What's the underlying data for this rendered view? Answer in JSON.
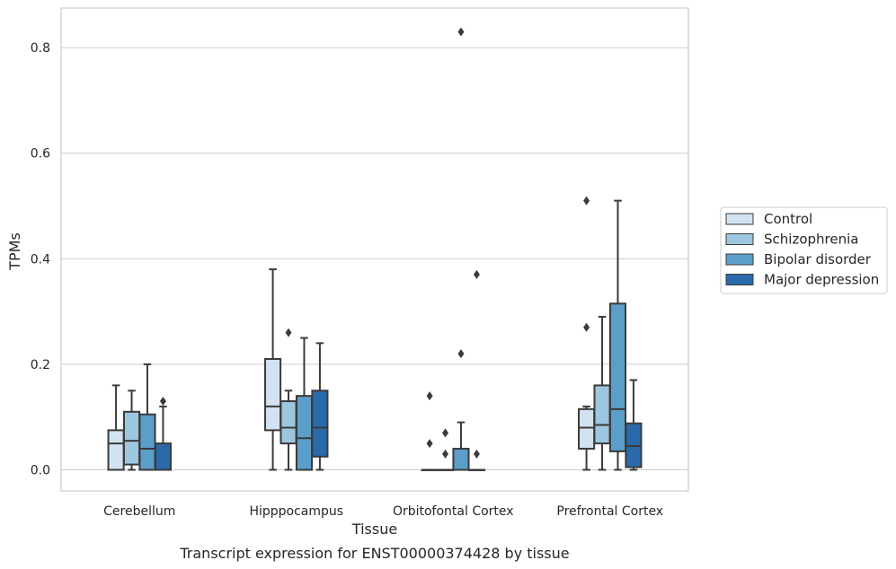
{
  "caption": "Transcript expression for ENST00000374428 by tissue",
  "chart_data": {
    "type": "box",
    "xlabel": "Tissue",
    "ylabel": "TPMs",
    "ylim": [
      -0.04,
      0.875
    ],
    "yticks": [
      "0.0",
      "0.2",
      "0.4",
      "0.6",
      "0.8"
    ],
    "ytick_values": [
      0.0,
      0.2,
      0.4,
      0.6,
      0.8
    ],
    "grid": true,
    "legend_position": "right",
    "categories": [
      "Cerebellum",
      "Hipppocampus",
      "Orbitofontal Cortex",
      "Prefrontal Cortex"
    ],
    "series": [
      {
        "name": "Control",
        "color": "#d2e2f0",
        "boxes": [
          {
            "min": 0.0,
            "q1": 0.0,
            "median": 0.05,
            "q3": 0.075,
            "max": 0.16,
            "outliers": []
          },
          {
            "min": 0.0,
            "q1": 0.075,
            "median": 0.12,
            "q3": 0.21,
            "max": 0.38,
            "outliers": []
          },
          {
            "min": 0.0,
            "q1": 0.0,
            "median": 0.0,
            "q3": 0.0,
            "max": 0.0,
            "outliers": [
              0.14,
              0.05
            ]
          },
          {
            "min": 0.0,
            "q1": 0.04,
            "median": 0.08,
            "q3": 0.115,
            "max": 0.12,
            "outliers": [
              0.51,
              0.27
            ]
          }
        ]
      },
      {
        "name": "Schizophrenia",
        "color": "#9dc7e0",
        "boxes": [
          {
            "min": 0.0,
            "q1": 0.01,
            "median": 0.055,
            "q3": 0.11,
            "max": 0.15,
            "outliers": []
          },
          {
            "min": 0.0,
            "q1": 0.05,
            "median": 0.08,
            "q3": 0.13,
            "max": 0.15,
            "outliers": [
              0.26
            ]
          },
          {
            "min": 0.0,
            "q1": 0.0,
            "median": 0.0,
            "q3": 0.0,
            "max": 0.0,
            "outliers": [
              0.07,
              0.03
            ]
          },
          {
            "min": 0.0,
            "q1": 0.05,
            "median": 0.085,
            "q3": 0.16,
            "max": 0.29,
            "outliers": []
          }
        ]
      },
      {
        "name": "Bipolar disorder",
        "color": "#5a9ec9",
        "boxes": [
          {
            "min": 0.0,
            "q1": 0.0,
            "median": 0.04,
            "q3": 0.105,
            "max": 0.2,
            "outliers": []
          },
          {
            "min": 0.0,
            "q1": 0.0,
            "median": 0.06,
            "q3": 0.14,
            "max": 0.25,
            "outliers": []
          },
          {
            "min": 0.0,
            "q1": 0.0,
            "median": 0.0,
            "q3": 0.04,
            "max": 0.09,
            "outliers": [
              0.83,
              0.22
            ]
          },
          {
            "min": 0.0,
            "q1": 0.035,
            "median": 0.115,
            "q3": 0.315,
            "max": 0.51,
            "outliers": []
          }
        ]
      },
      {
        "name": "Major depression",
        "color": "#2a6aab",
        "boxes": [
          {
            "min": 0.0,
            "q1": 0.0,
            "median": 0.0,
            "q3": 0.05,
            "max": 0.12,
            "outliers": [
              0.13
            ]
          },
          {
            "min": 0.0,
            "q1": 0.025,
            "median": 0.08,
            "q3": 0.15,
            "max": 0.24,
            "outliers": []
          },
          {
            "min": 0.0,
            "q1": 0.0,
            "median": 0.0,
            "q3": 0.0,
            "max": 0.0,
            "outliers": [
              0.37,
              0.03
            ]
          },
          {
            "min": 0.0,
            "q1": 0.005,
            "median": 0.045,
            "q3": 0.088,
            "max": 0.17,
            "outliers": []
          }
        ]
      }
    ]
  }
}
